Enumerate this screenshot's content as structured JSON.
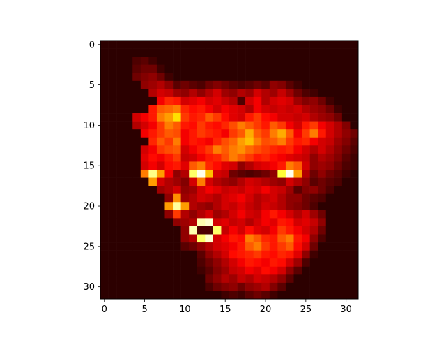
{
  "chart_data": {
    "type": "heatmap",
    "colormap": "hot",
    "title": "",
    "xlabel": "",
    "ylabel": "",
    "xlim": [
      -0.5,
      31.5
    ],
    "ylim": [
      31.5,
      -0.5
    ],
    "y_inverted": true,
    "grid": false,
    "legend": "none",
    "xticks": [
      0,
      5,
      10,
      15,
      20,
      25,
      30
    ],
    "yticks": [
      0,
      5,
      10,
      15,
      20,
      25,
      30
    ],
    "xtick_labels": [
      "0",
      "5",
      "10",
      "15",
      "20",
      "25",
      "30"
    ],
    "ytick_labels": [
      "0",
      "5",
      "10",
      "15",
      "20",
      "25",
      "30"
    ],
    "value_range": [
      0,
      1
    ],
    "rows": 32,
    "cols": 32,
    "values": [
      [
        0.05,
        0.05,
        0.05,
        0.05,
        0.05,
        0.05,
        0.05,
        0.05,
        0.05,
        0.05,
        0.05,
        0.05,
        0.05,
        0.05,
        0.05,
        0.05,
        0.05,
        0.05,
        0.05,
        0.05,
        0.05,
        0.05,
        0.05,
        0.05,
        0.05,
        0.05,
        0.05,
        0.05,
        0.05,
        0.05,
        0.05,
        0.05
      ],
      [
        0.05,
        0.05,
        0.05,
        0.05,
        0.05,
        0.05,
        0.05,
        0.05,
        0.05,
        0.05,
        0.05,
        0.05,
        0.05,
        0.05,
        0.05,
        0.05,
        0.05,
        0.05,
        0.05,
        0.05,
        0.05,
        0.05,
        0.05,
        0.05,
        0.05,
        0.05,
        0.05,
        0.05,
        0.05,
        0.05,
        0.05,
        0.05
      ],
      [
        0.05,
        0.05,
        0.05,
        0.05,
        0.1,
        0.12,
        0.08,
        0.05,
        0.05,
        0.05,
        0.05,
        0.05,
        0.05,
        0.05,
        0.05,
        0.05,
        0.05,
        0.05,
        0.05,
        0.05,
        0.05,
        0.05,
        0.05,
        0.05,
        0.05,
        0.05,
        0.05,
        0.05,
        0.05,
        0.05,
        0.05,
        0.05
      ],
      [
        0.05,
        0.05,
        0.05,
        0.05,
        0.12,
        0.15,
        0.15,
        0.08,
        0.05,
        0.05,
        0.05,
        0.05,
        0.05,
        0.05,
        0.05,
        0.05,
        0.05,
        0.05,
        0.05,
        0.05,
        0.05,
        0.05,
        0.05,
        0.05,
        0.05,
        0.05,
        0.05,
        0.05,
        0.05,
        0.05,
        0.05,
        0.05
      ],
      [
        0.05,
        0.05,
        0.05,
        0.05,
        0.15,
        0.18,
        0.2,
        0.15,
        0.08,
        0.05,
        0.05,
        0.05,
        0.05,
        0.05,
        0.05,
        0.05,
        0.05,
        0.05,
        0.05,
        0.05,
        0.05,
        0.05,
        0.05,
        0.05,
        0.05,
        0.05,
        0.05,
        0.05,
        0.05,
        0.05,
        0.05,
        0.05
      ],
      [
        0.05,
        0.05,
        0.05,
        0.05,
        0.05,
        0.2,
        0.22,
        0.25,
        0.2,
        0.12,
        0.15,
        0.12,
        0.1,
        0.15,
        0.18,
        0.15,
        0.12,
        0.1,
        0.12,
        0.15,
        0.12,
        0.2,
        0.18,
        0.12,
        0.08,
        0.05,
        0.05,
        0.05,
        0.05,
        0.05,
        0.05,
        0.05
      ],
      [
        0.05,
        0.05,
        0.05,
        0.05,
        0.05,
        0.05,
        0.25,
        0.3,
        0.28,
        0.22,
        0.2,
        0.25,
        0.2,
        0.25,
        0.3,
        0.22,
        0.2,
        0.25,
        0.22,
        0.3,
        0.25,
        0.22,
        0.28,
        0.22,
        0.15,
        0.1,
        0.08,
        0.05,
        0.05,
        0.05,
        0.05,
        0.05
      ],
      [
        0.05,
        0.05,
        0.05,
        0.05,
        0.05,
        0.05,
        0.05,
        0.35,
        0.42,
        0.4,
        0.3,
        0.32,
        0.35,
        0.3,
        0.32,
        0.28,
        0.25,
        0.1,
        0.3,
        0.35,
        0.25,
        0.3,
        0.32,
        0.3,
        0.22,
        0.18,
        0.2,
        0.15,
        0.08,
        0.05,
        0.05,
        0.05
      ],
      [
        0.05,
        0.05,
        0.05,
        0.05,
        0.05,
        0.05,
        0.4,
        0.5,
        0.52,
        0.55,
        0.42,
        0.38,
        0.4,
        0.35,
        0.3,
        0.35,
        0.32,
        0.3,
        0.25,
        0.35,
        0.3,
        0.28,
        0.3,
        0.28,
        0.3,
        0.25,
        0.22,
        0.2,
        0.15,
        0.08,
        0.05,
        0.05
      ],
      [
        0.05,
        0.05,
        0.05,
        0.05,
        0.3,
        0.35,
        0.4,
        0.55,
        0.6,
        0.7,
        0.45,
        0.4,
        0.42,
        0.5,
        0.45,
        0.38,
        0.32,
        0.3,
        0.4,
        0.45,
        0.38,
        0.35,
        0.3,
        0.3,
        0.28,
        0.3,
        0.25,
        0.22,
        0.2,
        0.15,
        0.05,
        0.05
      ],
      [
        0.05,
        0.05,
        0.05,
        0.05,
        0.25,
        0.3,
        0.35,
        0.45,
        0.55,
        0.5,
        0.4,
        0.38,
        0.45,
        0.4,
        0.38,
        0.42,
        0.48,
        0.55,
        0.5,
        0.45,
        0.4,
        0.5,
        0.45,
        0.35,
        0.3,
        0.4,
        0.45,
        0.35,
        0.3,
        0.25,
        0.18,
        0.05
      ],
      [
        0.05,
        0.05,
        0.05,
        0.05,
        0.05,
        0.35,
        0.4,
        0.45,
        0.5,
        0.48,
        0.35,
        0.4,
        0.45,
        0.42,
        0.4,
        0.35,
        0.45,
        0.5,
        0.62,
        0.5,
        0.45,
        0.55,
        0.62,
        0.5,
        0.35,
        0.45,
        0.55,
        0.4,
        0.3,
        0.25,
        0.2,
        0.15
      ],
      [
        0.05,
        0.05,
        0.05,
        0.05,
        0.05,
        0.05,
        0.42,
        0.5,
        0.45,
        0.55,
        0.35,
        0.4,
        0.38,
        0.35,
        0.42,
        0.48,
        0.52,
        0.6,
        0.65,
        0.55,
        0.48,
        0.5,
        0.55,
        0.45,
        0.4,
        0.42,
        0.35,
        0.3,
        0.28,
        0.22,
        0.18,
        0.12
      ],
      [
        0.05,
        0.05,
        0.05,
        0.05,
        0.05,
        0.3,
        0.35,
        0.45,
        0.48,
        0.5,
        0.3,
        0.35,
        0.4,
        0.45,
        0.55,
        0.5,
        0.55,
        0.58,
        0.52,
        0.48,
        0.45,
        0.42,
        0.4,
        0.42,
        0.35,
        0.3,
        0.25,
        0.3,
        0.25,
        0.2,
        0.15,
        0.1
      ],
      [
        0.05,
        0.05,
        0.05,
        0.05,
        0.05,
        0.32,
        0.38,
        0.35,
        0.4,
        0.45,
        0.28,
        0.3,
        0.35,
        0.4,
        0.42,
        0.48,
        0.55,
        0.5,
        0.45,
        0.4,
        0.42,
        0.38,
        0.35,
        0.32,
        0.3,
        0.28,
        0.2,
        0.25,
        0.22,
        0.18,
        0.12,
        0.08
      ],
      [
        0.05,
        0.05,
        0.05,
        0.05,
        0.05,
        0.3,
        0.35,
        0.3,
        0.38,
        0.4,
        0.32,
        0.5,
        0.55,
        0.42,
        0.38,
        0.32,
        0.3,
        0.2,
        0.25,
        0.3,
        0.32,
        0.35,
        0.4,
        0.55,
        0.5,
        0.3,
        0.2,
        0.22,
        0.2,
        0.15,
        0.1,
        0.08
      ],
      [
        0.05,
        0.05,
        0.05,
        0.05,
        0.05,
        0.55,
        0.88,
        0.6,
        0.35,
        0.2,
        0.25,
        0.85,
        0.98,
        0.65,
        0.3,
        0.28,
        0.15,
        0.12,
        0.1,
        0.12,
        0.15,
        0.2,
        0.8,
        0.98,
        0.6,
        0.25,
        0.15,
        0.2,
        0.15,
        0.12,
        0.08,
        0.05
      ],
      [
        0.05,
        0.05,
        0.05,
        0.05,
        0.05,
        0.05,
        0.6,
        0.3,
        0.25,
        0.22,
        0.18,
        0.3,
        0.55,
        0.3,
        0.25,
        0.22,
        0.2,
        0.25,
        0.3,
        0.28,
        0.25,
        0.22,
        0.2,
        0.3,
        0.25,
        0.2,
        0.12,
        0.15,
        0.12,
        0.1,
        0.05,
        0.05
      ],
      [
        0.05,
        0.05,
        0.05,
        0.05,
        0.05,
        0.05,
        0.05,
        0.22,
        0.25,
        0.3,
        0.2,
        0.22,
        0.3,
        0.35,
        0.32,
        0.28,
        0.3,
        0.28,
        0.32,
        0.3,
        0.35,
        0.3,
        0.28,
        0.22,
        0.12,
        0.18,
        0.2,
        0.15,
        0.1,
        0.05,
        0.05,
        0.05
      ],
      [
        0.05,
        0.05,
        0.05,
        0.05,
        0.05,
        0.05,
        0.05,
        0.05,
        0.2,
        0.58,
        0.22,
        0.25,
        0.3,
        0.28,
        0.25,
        0.3,
        0.32,
        0.35,
        0.3,
        0.25,
        0.28,
        0.3,
        0.25,
        0.2,
        0.2,
        0.15,
        0.12,
        0.1,
        0.05,
        0.05,
        0.05,
        0.05
      ],
      [
        0.05,
        0.05,
        0.05,
        0.05,
        0.05,
        0.05,
        0.05,
        0.05,
        0.6,
        0.9,
        0.6,
        0.25,
        0.22,
        0.2,
        0.25,
        0.3,
        0.28,
        0.32,
        0.28,
        0.25,
        0.3,
        0.28,
        0.25,
        0.2,
        0.18,
        0.15,
        0.1,
        0.05,
        0.05,
        0.05,
        0.05,
        0.05
      ],
      [
        0.05,
        0.05,
        0.05,
        0.05,
        0.05,
        0.05,
        0.05,
        0.05,
        0.2,
        0.45,
        0.25,
        0.2,
        0.25,
        0.3,
        0.22,
        0.25,
        0.3,
        0.35,
        0.3,
        0.28,
        0.35,
        0.4,
        0.35,
        0.3,
        0.25,
        0.3,
        0.22,
        0.15,
        0.05,
        0.05,
        0.05,
        0.05
      ],
      [
        0.05,
        0.05,
        0.05,
        0.05,
        0.05,
        0.05,
        0.05,
        0.05,
        0.05,
        0.2,
        0.22,
        0.25,
        0.92,
        0.95,
        0.3,
        0.32,
        0.28,
        0.3,
        0.25,
        0.3,
        0.35,
        0.32,
        0.4,
        0.38,
        0.3,
        0.32,
        0.28,
        0.2,
        0.05,
        0.05,
        0.05,
        0.05
      ],
      [
        0.05,
        0.05,
        0.05,
        0.05,
        0.05,
        0.05,
        0.05,
        0.05,
        0.05,
        0.05,
        0.2,
        0.92,
        0.1,
        0.1,
        0.85,
        0.28,
        0.35,
        0.3,
        0.38,
        0.32,
        0.3,
        0.35,
        0.45,
        0.4,
        0.35,
        0.3,
        0.25,
        0.15,
        0.05,
        0.05,
        0.05,
        0.05
      ],
      [
        0.05,
        0.05,
        0.05,
        0.05,
        0.05,
        0.05,
        0.05,
        0.05,
        0.05,
        0.05,
        0.2,
        0.25,
        0.85,
        0.95,
        0.3,
        0.35,
        0.4,
        0.38,
        0.55,
        0.5,
        0.42,
        0.4,
        0.5,
        0.55,
        0.4,
        0.35,
        0.2,
        0.1,
        0.05,
        0.05,
        0.05,
        0.05
      ],
      [
        0.05,
        0.05,
        0.05,
        0.05,
        0.05,
        0.05,
        0.05,
        0.05,
        0.05,
        0.05,
        0.12,
        0.15,
        0.2,
        0.25,
        0.3,
        0.32,
        0.35,
        0.4,
        0.5,
        0.55,
        0.45,
        0.4,
        0.45,
        0.5,
        0.38,
        0.3,
        0.15,
        0.05,
        0.05,
        0.05,
        0.05,
        0.05
      ],
      [
        0.05,
        0.05,
        0.05,
        0.05,
        0.05,
        0.05,
        0.05,
        0.05,
        0.05,
        0.05,
        0.05,
        0.05,
        0.12,
        0.2,
        0.25,
        0.3,
        0.38,
        0.4,
        0.42,
        0.45,
        0.4,
        0.38,
        0.42,
        0.4,
        0.32,
        0.2,
        0.08,
        0.05,
        0.05,
        0.05,
        0.05,
        0.05
      ],
      [
        0.05,
        0.05,
        0.05,
        0.05,
        0.05,
        0.05,
        0.05,
        0.05,
        0.05,
        0.05,
        0.05,
        0.05,
        0.1,
        0.15,
        0.2,
        0.25,
        0.3,
        0.35,
        0.4,
        0.38,
        0.35,
        0.4,
        0.38,
        0.3,
        0.22,
        0.1,
        0.05,
        0.05,
        0.05,
        0.05,
        0.05,
        0.05
      ],
      [
        0.05,
        0.05,
        0.05,
        0.05,
        0.05,
        0.05,
        0.05,
        0.05,
        0.05,
        0.05,
        0.05,
        0.05,
        0.08,
        0.12,
        0.18,
        0.22,
        0.28,
        0.3,
        0.35,
        0.32,
        0.38,
        0.35,
        0.3,
        0.2,
        0.12,
        0.05,
        0.05,
        0.05,
        0.05,
        0.05,
        0.05,
        0.05
      ],
      [
        0.05,
        0.05,
        0.05,
        0.05,
        0.05,
        0.05,
        0.05,
        0.05,
        0.05,
        0.05,
        0.05,
        0.05,
        0.05,
        0.15,
        0.2,
        0.25,
        0.22,
        0.28,
        0.25,
        0.3,
        0.28,
        0.25,
        0.2,
        0.12,
        0.05,
        0.05,
        0.05,
        0.05,
        0.05,
        0.05,
        0.05,
        0.05
      ],
      [
        0.05,
        0.05,
        0.05,
        0.05,
        0.05,
        0.05,
        0.05,
        0.05,
        0.05,
        0.05,
        0.05,
        0.05,
        0.05,
        0.1,
        0.15,
        0.18,
        0.2,
        0.15,
        0.2,
        0.22,
        0.25,
        0.18,
        0.12,
        0.05,
        0.05,
        0.05,
        0.05,
        0.05,
        0.05,
        0.05,
        0.05,
        0.05
      ],
      [
        0.05,
        0.05,
        0.05,
        0.05,
        0.05,
        0.05,
        0.05,
        0.05,
        0.05,
        0.05,
        0.05,
        0.05,
        0.05,
        0.05,
        0.05,
        0.08,
        0.1,
        0.08,
        0.12,
        0.15,
        0.12,
        0.08,
        0.05,
        0.05,
        0.05,
        0.05,
        0.05,
        0.05,
        0.05,
        0.05,
        0.05,
        0.05
      ]
    ]
  }
}
